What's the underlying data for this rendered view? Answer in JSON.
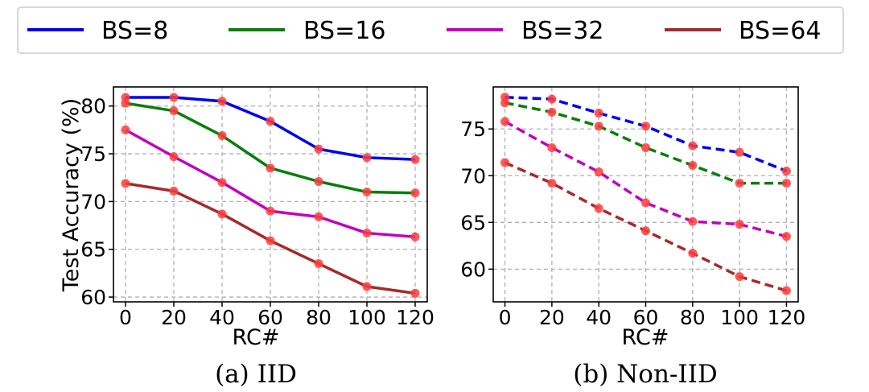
{
  "legend": [
    {
      "label": "BS=8",
      "color": "#0000ee"
    },
    {
      "label": "BS=16",
      "color": "#0a7d0a"
    },
    {
      "label": "BS=32",
      "color": "#c000c0"
    },
    {
      "label": "BS=64",
      "color": "#a52a2a"
    }
  ],
  "marker_color": "#ff3b3b",
  "chart_data": [
    {
      "type": "line",
      "caption": "(a) IID",
      "xlabel": "RC#",
      "ylabel": "Test Accuracy (%)",
      "line_style": "solid",
      "x": [
        0,
        20,
        40,
        60,
        80,
        100,
        120
      ],
      "xticks": [
        "0",
        "20",
        "40",
        "60",
        "80",
        "100",
        "120"
      ],
      "yticks": [
        "60",
        "65",
        "70",
        "75",
        "80"
      ],
      "xlim": [
        -5,
        125
      ],
      "ylim": [
        59.5,
        82
      ],
      "grid": true,
      "series": [
        {
          "name": "BS=8",
          "values": [
            80.9,
            80.9,
            80.5,
            78.4,
            75.5,
            74.6,
            74.4
          ]
        },
        {
          "name": "BS=16",
          "values": [
            80.3,
            79.5,
            76.9,
            73.5,
            72.1,
            71.0,
            70.9
          ]
        },
        {
          "name": "BS=32",
          "values": [
            77.5,
            74.7,
            72.0,
            69.0,
            68.4,
            66.7,
            66.3
          ]
        },
        {
          "name": "BS=64",
          "values": [
            71.9,
            71.1,
            68.7,
            65.9,
            63.5,
            61.1,
            60.4
          ]
        }
      ]
    },
    {
      "type": "line",
      "caption": "(b) Non-IID",
      "xlabel": "RC#",
      "ylabel": "",
      "line_style": "dashed",
      "x": [
        0,
        20,
        40,
        60,
        80,
        100,
        120
      ],
      "xticks": [
        "0",
        "20",
        "40",
        "60",
        "80",
        "100",
        "120"
      ],
      "yticks": [
        "60",
        "65",
        "70",
        "75"
      ],
      "xlim": [
        -5,
        125
      ],
      "ylim": [
        56.5,
        79.5
      ],
      "grid": true,
      "series": [
        {
          "name": "BS=8",
          "values": [
            78.4,
            78.2,
            76.7,
            75.3,
            73.2,
            72.5,
            70.5
          ]
        },
        {
          "name": "BS=16",
          "values": [
            77.8,
            76.8,
            75.3,
            73.0,
            71.1,
            69.2,
            69.2
          ]
        },
        {
          "name": "BS=32",
          "values": [
            75.8,
            73.0,
            70.4,
            67.1,
            65.1,
            64.8,
            63.5
          ]
        },
        {
          "name": "BS=64",
          "values": [
            71.4,
            69.2,
            66.5,
            64.1,
            61.7,
            59.2,
            57.7
          ]
        }
      ]
    }
  ]
}
